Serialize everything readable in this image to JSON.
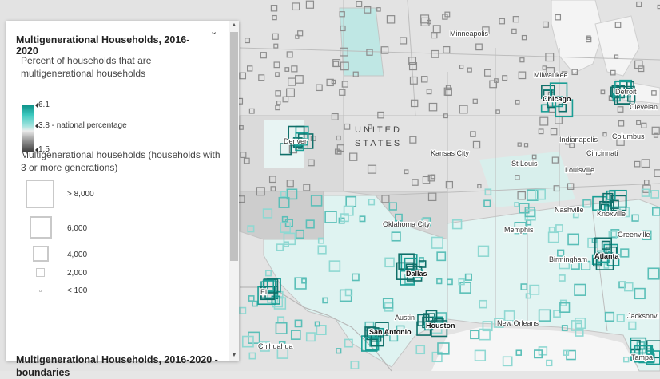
{
  "legend": {
    "layer_title": "Multigenerational Households, 2016-2020",
    "color_title": "Percent of households that are multigenerational households",
    "color_stops": {
      "high": "6.1",
      "mid": "3.8 - national percentage",
      "low": "1.5"
    },
    "size_title": "Multigenerational households (households with 3 or more generations)",
    "sizes": [
      {
        "label": "> 8,000"
      },
      {
        "label": "6,000"
      },
      {
        "label": "4,000"
      },
      {
        "label": "2,000"
      },
      {
        "label": "< 100"
      }
    ],
    "next_layer_title": "Multigenerational Households, 2016-2020 - boundaries",
    "colors": {
      "ramp_high": "#0b8e86",
      "ramp_mid": "#ececec",
      "ramp_low": "#3a3a3a"
    }
  },
  "map": {
    "country_label_line1": "UNITED",
    "country_label_line2": "STATES",
    "cities": {
      "minneapolis": "Minneapolis",
      "milwaukee": "Milwaukee",
      "detroit": "Detroit",
      "chicago": "Chicago",
      "cleveland": "Clevelan",
      "columbus": "Columbus",
      "indianapolis": "Indianapolis",
      "cincinnati": "Cincinnati",
      "denver": "Denver",
      "kansas_city": "Kansas City",
      "st_louis": "St Louis",
      "louisville": "Louisville",
      "nashville": "Nashville",
      "knoxville": "Knoxville",
      "oklahoma_city": "Oklahoma City",
      "memphis": "Memphis",
      "greenville": "Greenville",
      "birmingham": "Birmingham",
      "atlanta": "Atlanta",
      "dallas": "Dallas",
      "el_paso": "El",
      "austin": "Austin",
      "san_antonio": "San Antonio",
      "houston": "Houston",
      "new_orleans": "New Orleans",
      "jacksonville": "Jacksonvi",
      "chihuahua": "Chihuahua",
      "tampa": "Tampa"
    },
    "colors": {
      "land": "#dedede",
      "border": "#bdbdbd",
      "teal": "#1a9e95",
      "grey_square": "#8c8c8c"
    }
  }
}
